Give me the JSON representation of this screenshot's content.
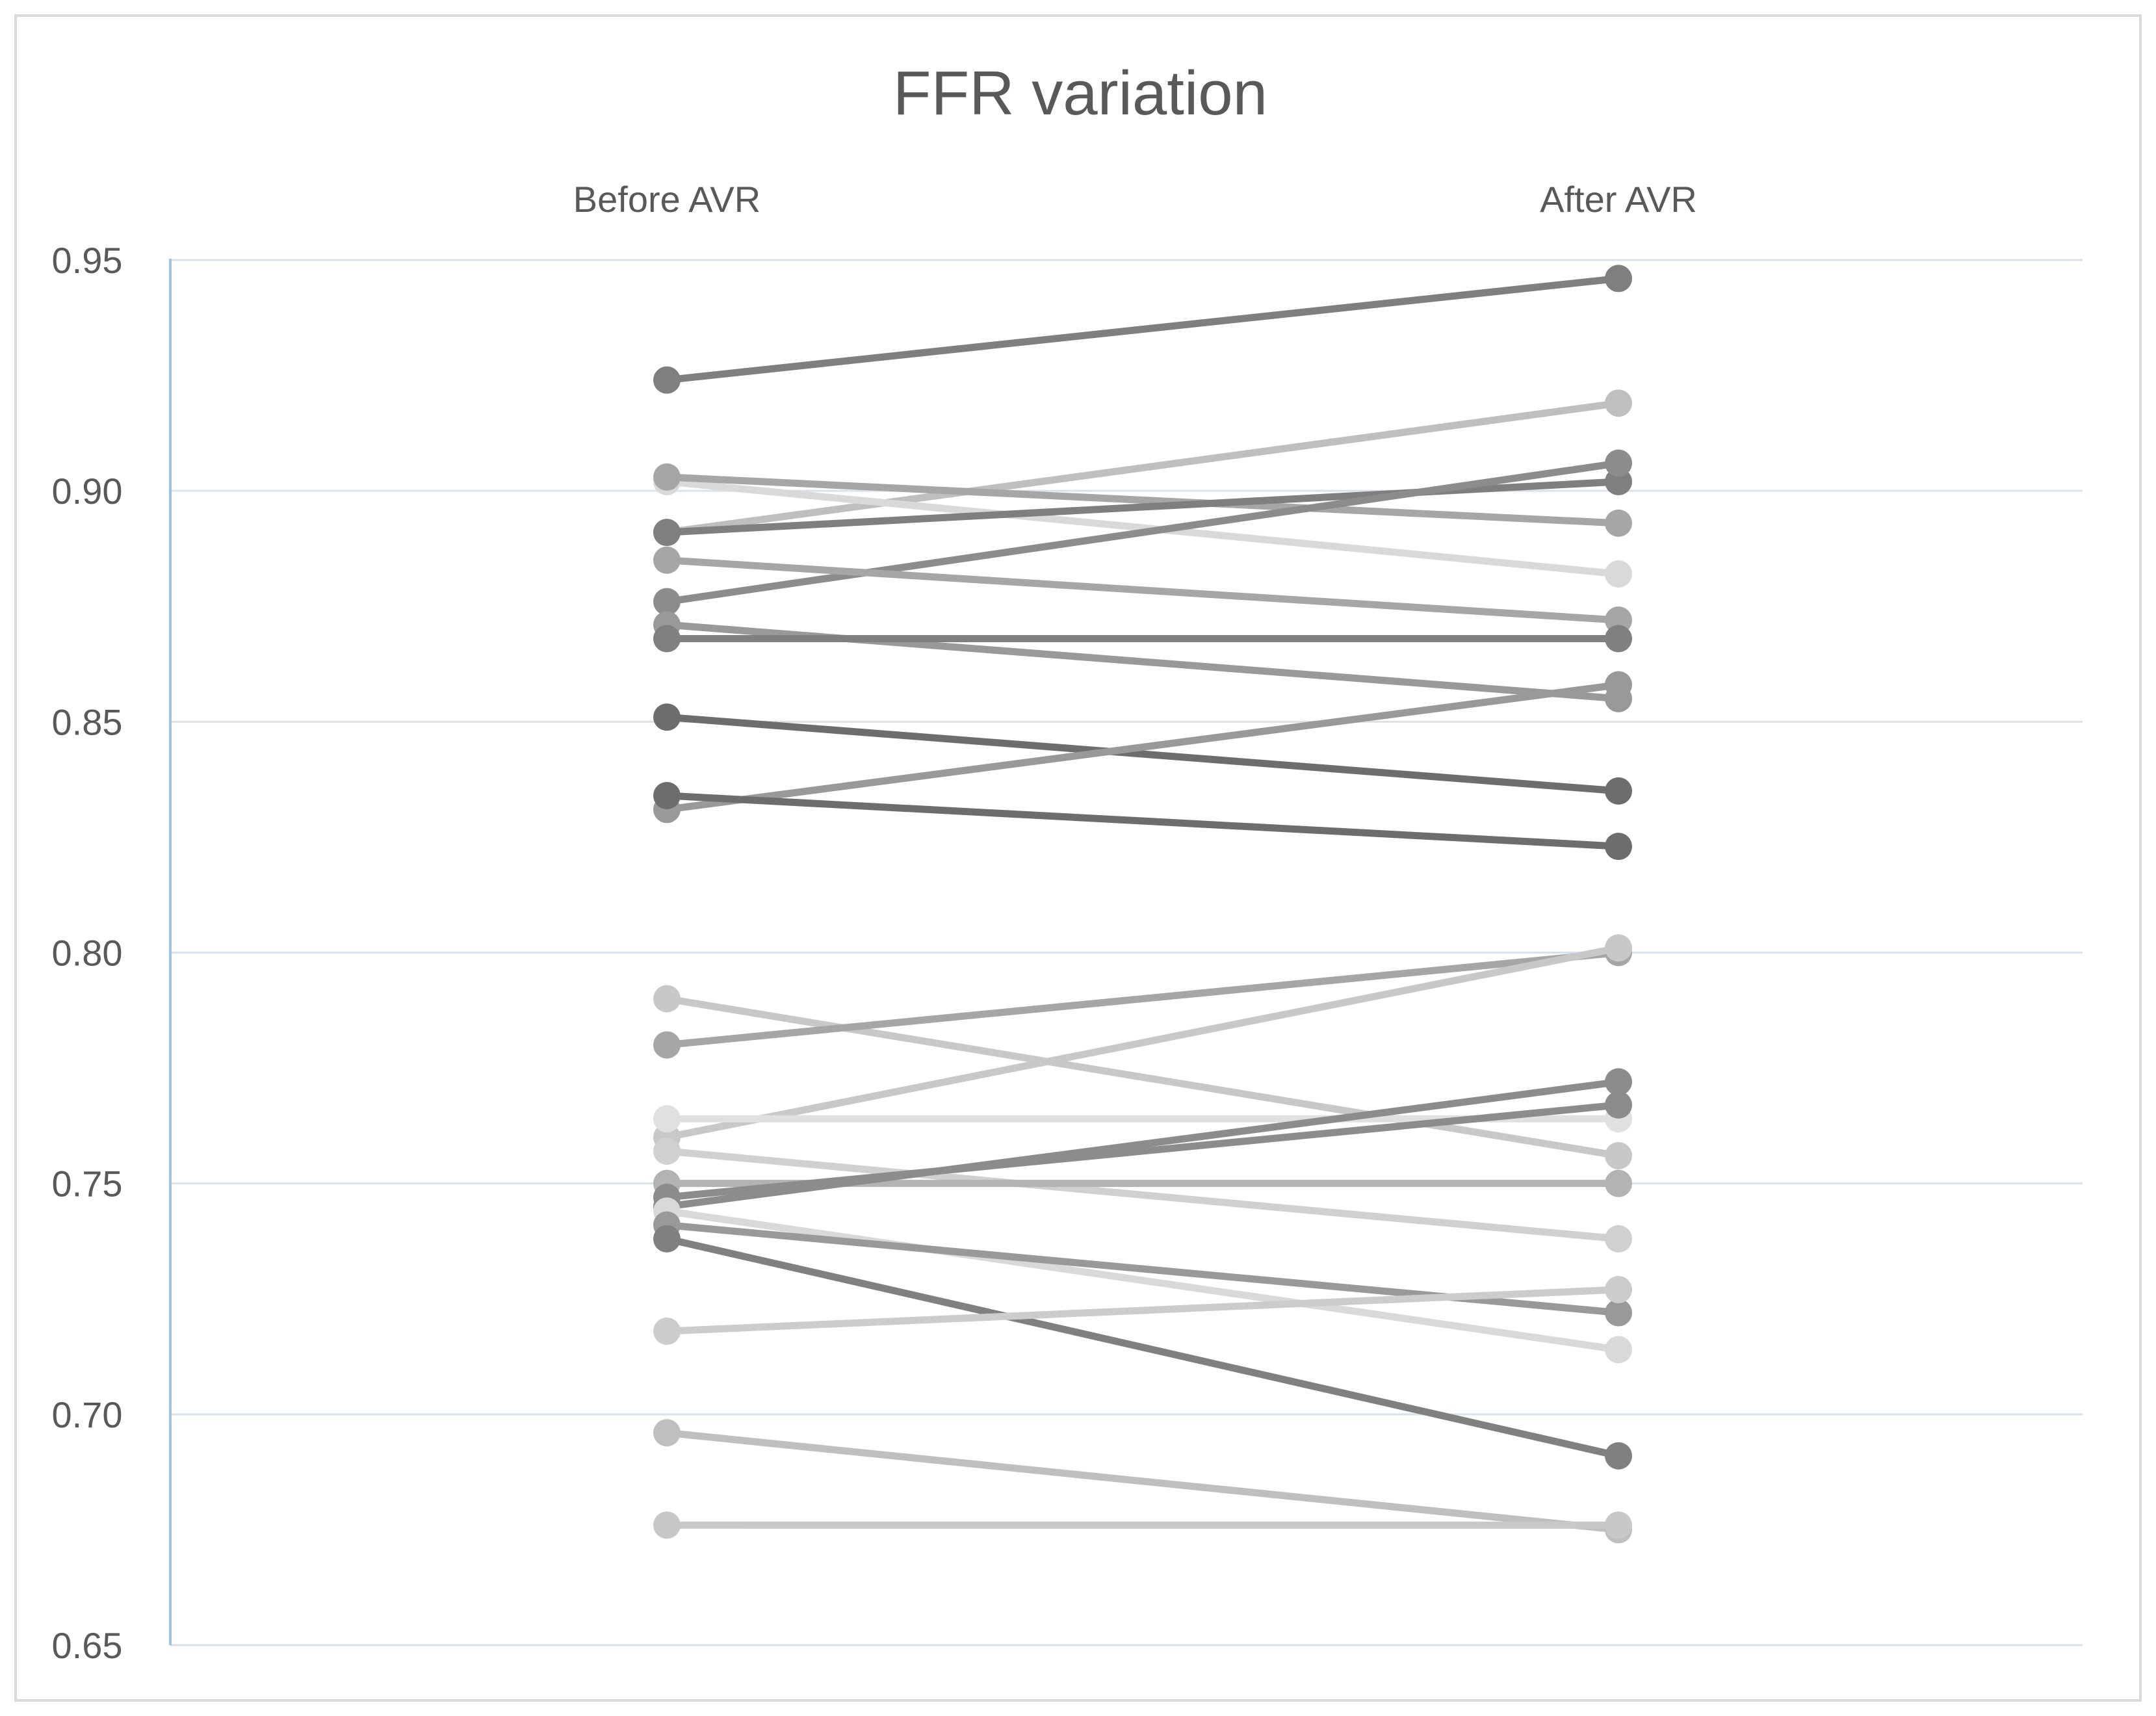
{
  "chart_data": {
    "type": "line",
    "title": "FFR variation",
    "categories": [
      "Before AVR",
      "After AVR"
    ],
    "ylim": [
      0.65,
      0.95
    ],
    "yticks": [
      "0.95",
      "0.90",
      "0.85",
      "0.80",
      "0.75",
      "0.70",
      "0.65"
    ],
    "grid": true,
    "legend": "none",
    "series": [
      {
        "values": [
          0.924,
          0.946
        ],
        "color": "#7f7f7f"
      },
      {
        "values": [
          0.891,
          0.919
        ],
        "color": "#bfbfbf"
      },
      {
        "values": [
          0.902,
          0.882
        ],
        "color": "#d9d9d9"
      },
      {
        "values": [
          0.903,
          0.893
        ],
        "color": "#a6a6a6"
      },
      {
        "values": [
          0.891,
          0.902
        ],
        "color": "#7f7f7f"
      },
      {
        "values": [
          0.876,
          0.906
        ],
        "color": "#8c8c8c"
      },
      {
        "values": [
          0.885,
          0.872
        ],
        "color": "#a6a6a6"
      },
      {
        "values": [
          0.871,
          0.855
        ],
        "color": "#999999"
      },
      {
        "values": [
          0.868,
          0.868
        ],
        "color": "#808080"
      },
      {
        "values": [
          0.851,
          0.835
        ],
        "color": "#6d6d6d"
      },
      {
        "values": [
          0.831,
          0.858
        ],
        "color": "#999999"
      },
      {
        "values": [
          0.834,
          0.823
        ],
        "color": "#6d6d6d"
      },
      {
        "values": [
          0.79,
          0.756
        ],
        "color": "#c8c8c8"
      },
      {
        "values": [
          0.78,
          0.8
        ],
        "color": "#a6a6a6"
      },
      {
        "values": [
          0.76,
          0.801
        ],
        "color": "#c8c8c8"
      },
      {
        "values": [
          0.764,
          0.764
        ],
        "color": "#e0e0e0"
      },
      {
        "values": [
          0.757,
          0.738
        ],
        "color": "#d0d0d0"
      },
      {
        "values": [
          0.75,
          0.75
        ],
        "color": "#b3b3b3"
      },
      {
        "values": [
          0.745,
          0.772
        ],
        "color": "#8c8c8c"
      },
      {
        "values": [
          0.747,
          0.767
        ],
        "color": "#8c8c8c"
      },
      {
        "values": [
          0.744,
          0.714
        ],
        "color": "#d9d9d9"
      },
      {
        "values": [
          0.741,
          0.722
        ],
        "color": "#999999"
      },
      {
        "values": [
          0.738,
          0.691
        ],
        "color": "#808080"
      },
      {
        "values": [
          0.718,
          0.727
        ],
        "color": "#cccccc"
      },
      {
        "values": [
          0.696,
          0.675
        ],
        "color": "#bfbfbf"
      },
      {
        "values": [
          0.676,
          0.676
        ],
        "color": "#c8c8c8"
      }
    ]
  }
}
